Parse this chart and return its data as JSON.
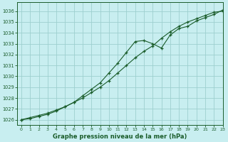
{
  "title": "Graphe pression niveau de la mer (hPa)",
  "background_color": "#c8eef0",
  "grid_color": "#9dcfcf",
  "line_color": "#1a5c2a",
  "xlim": [
    -0.5,
    23
  ],
  "ylim": [
    1025.5,
    1036.8
  ],
  "yticks": [
    1026,
    1027,
    1028,
    1029,
    1030,
    1031,
    1032,
    1033,
    1034,
    1035,
    1036
  ],
  "xticks": [
    0,
    1,
    2,
    3,
    4,
    5,
    6,
    7,
    8,
    9,
    10,
    11,
    12,
    13,
    14,
    15,
    16,
    17,
    18,
    19,
    20,
    21,
    22,
    23
  ],
  "line1_x": [
    0,
    1,
    2,
    3,
    4,
    5,
    6,
    7,
    8,
    9,
    10,
    11,
    12,
    13,
    14,
    15,
    16,
    17,
    18,
    19,
    20,
    21,
    22,
    23
  ],
  "line1_y": [
    1026.0,
    1026.1,
    1026.3,
    1026.5,
    1026.8,
    1027.2,
    1027.6,
    1028.2,
    1028.8,
    1029.4,
    1030.3,
    1031.2,
    1032.2,
    1033.2,
    1033.3,
    1033.0,
    1032.6,
    1033.8,
    1034.4,
    1034.6,
    1035.1,
    1035.4,
    1035.7,
    1036.1
  ],
  "line2_x": [
    0,
    1,
    2,
    3,
    4,
    5,
    6,
    7,
    8,
    9,
    10,
    11,
    12,
    13,
    14,
    15,
    16,
    17,
    18,
    19,
    20,
    21,
    22,
    23
  ],
  "line2_y": [
    1026.0,
    1026.2,
    1026.4,
    1026.6,
    1026.9,
    1027.2,
    1027.6,
    1028.0,
    1028.5,
    1029.0,
    1029.6,
    1030.3,
    1031.0,
    1031.7,
    1032.3,
    1032.8,
    1033.5,
    1034.1,
    1034.6,
    1035.0,
    1035.3,
    1035.6,
    1035.9,
    1036.0
  ]
}
